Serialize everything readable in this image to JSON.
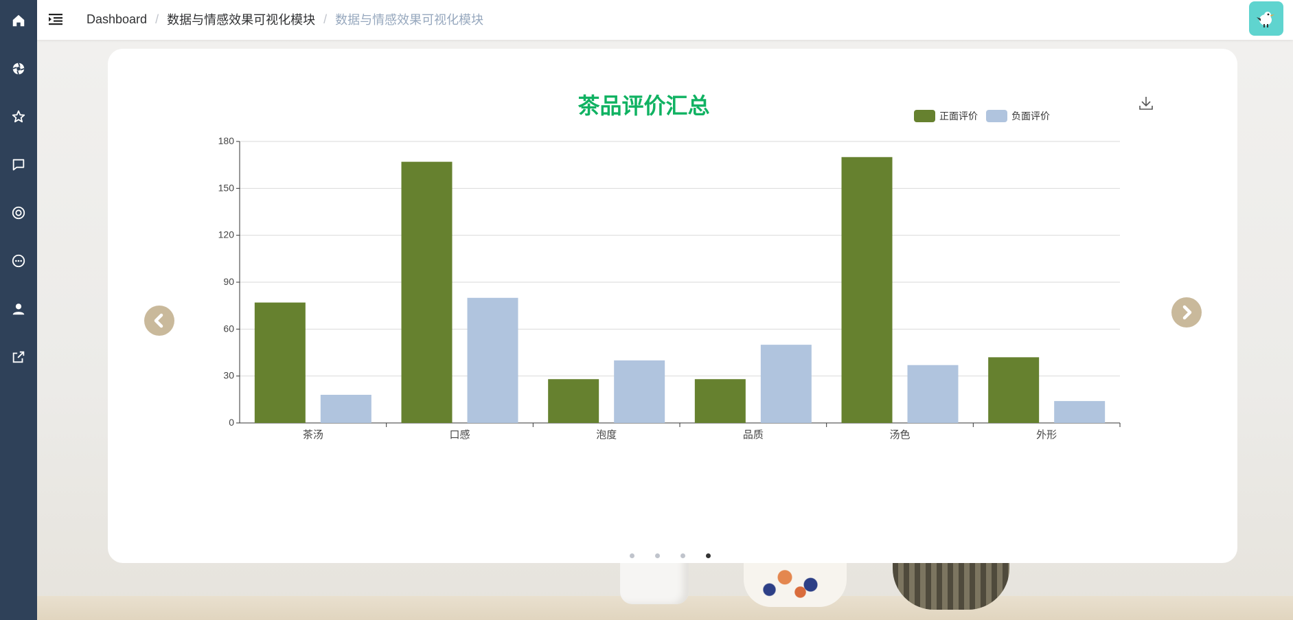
{
  "sidebar": {
    "items": [
      {
        "icon": "home-icon"
      },
      {
        "icon": "aperture-icon"
      },
      {
        "icon": "star-icon"
      },
      {
        "icon": "message-square-icon"
      },
      {
        "icon": "lifebuoy-icon"
      },
      {
        "icon": "chat-bubble-icon"
      },
      {
        "icon": "user-icon"
      },
      {
        "icon": "external-link-icon"
      }
    ]
  },
  "header": {
    "breadcrumb": [
      "Dashboard",
      "数据与情感效果可视化模块",
      "数据与情感效果可视化模块"
    ],
    "separator": "/"
  },
  "chart_data": {
    "type": "bar",
    "title": "茶品评价汇总",
    "categories": [
      "茶汤",
      "口感",
      "泡度",
      "品质",
      "汤色",
      "外形"
    ],
    "series": [
      {
        "name": "正面评价",
        "color": "#66812f",
        "values": [
          77,
          167,
          28,
          28,
          170,
          42
        ]
      },
      {
        "name": "负面评价",
        "color": "#b0c4de",
        "values": [
          18,
          80,
          40,
          50,
          37,
          14
        ]
      }
    ],
    "ylim": [
      0,
      180
    ],
    "yticks": [
      0,
      30,
      60,
      90,
      120,
      150,
      180
    ],
    "grid": true,
    "legend": "top-right",
    "xlabel": "",
    "ylabel": ""
  },
  "carousel": {
    "slides": 4,
    "active": 4,
    "prev_icon": "chevron-left-icon",
    "next_icon": "chevron-right-icon"
  },
  "colors": {
    "sidebar": "#2f4159",
    "title": "#10b262",
    "arrow": "#c9b99b",
    "avatar": "#5fd4cf"
  }
}
